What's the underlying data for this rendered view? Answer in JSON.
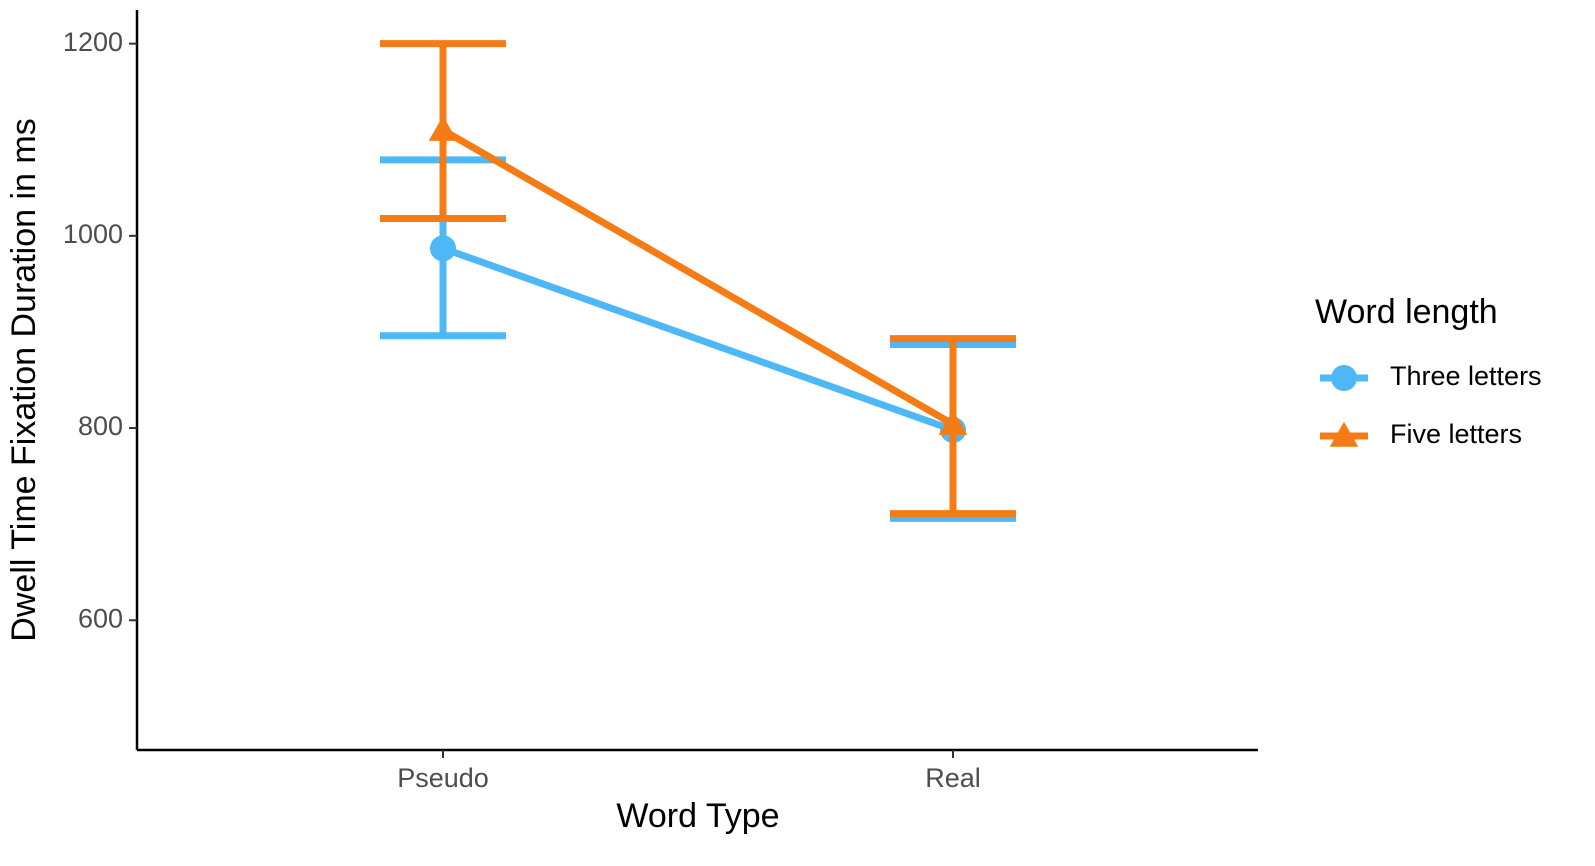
{
  "chart_data": {
    "type": "line",
    "x_label": "Word Type",
    "y_label": "Dwell Time Fixation Duration in ms",
    "legend_title": "Word length",
    "categories": [
      "Pseudo",
      "Real"
    ],
    "ylim": [
      465,
      1235
    ],
    "yticks": [
      600,
      800,
      1000,
      1200
    ],
    "grid": false,
    "legend_position": "right",
    "series": [
      {
        "name": "Three letters",
        "color": "#4db8f5",
        "marker": "circle",
        "values": [
          987,
          798
        ],
        "lower": [
          896,
          706
        ],
        "upper": [
          1079,
          887
        ]
      },
      {
        "name": "Five letters",
        "color": "#f57c14",
        "marker": "triangle",
        "values": [
          1110,
          804
        ],
        "lower": [
          1018,
          711
        ],
        "upper": [
          1200,
          893
        ]
      }
    ]
  }
}
